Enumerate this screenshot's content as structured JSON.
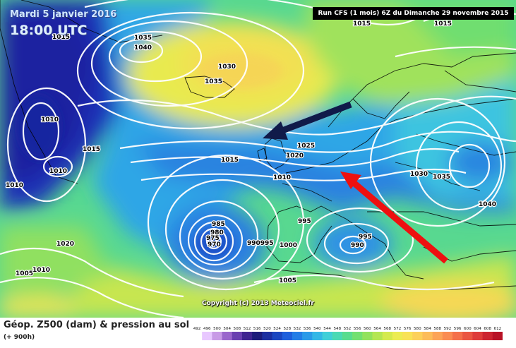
{
  "header": {
    "date": "Mardi 5 janvier 2016",
    "time": "18:00 UTC",
    "run": "Run CFS (1 mois) 6Z du Dimanche 29 novembre 2015"
  },
  "copyright": "Copyright (c) 2013 Meteociel.fr",
  "legend": {
    "title": "Géop. Z500 (dam) & pression au sol",
    "hours": "(+ 900h)",
    "scale": [
      "492",
      "496",
      "500",
      "504",
      "508",
      "512",
      "516",
      "520",
      "524",
      "528",
      "532",
      "536",
      "540",
      "544",
      "548",
      "552",
      "556",
      "560",
      "564",
      "568",
      "572",
      "576",
      "580",
      "584",
      "588",
      "592",
      "596",
      "600",
      "604",
      "608",
      "612"
    ],
    "colors": [
      "#ffffff",
      "#e8c8ff",
      "#c89ae6",
      "#9a66cc",
      "#6a40b0",
      "#3f2590",
      "#1c1c7a",
      "#1c2fa0",
      "#1b46c0",
      "#1e5fdc",
      "#237de6",
      "#2a9ae8",
      "#33b7e6",
      "#40cfd8",
      "#4ad9b4",
      "#58dc8e",
      "#72e070",
      "#92e25c",
      "#b4e652",
      "#d4ea4e",
      "#ecec52",
      "#f8e256",
      "#fcd05a",
      "#fcbc5a",
      "#fca458",
      "#fa8c52",
      "#f4704a",
      "#ea5642",
      "#de3c3a",
      "#cc2430",
      "#b81226"
    ]
  },
  "map": {
    "isobars": [
      {
        "label": "1015",
        "kind": "high"
      },
      {
        "label": "1015",
        "kind": "high"
      },
      {
        "label": "1035",
        "kind": "high"
      },
      {
        "label": "1040",
        "kind": "high"
      },
      {
        "label": "1030",
        "kind": "high"
      },
      {
        "label": "1035",
        "kind": "high"
      },
      {
        "label": "1015",
        "kind": "mid"
      },
      {
        "label": "1010",
        "kind": "low"
      },
      {
        "label": "1010",
        "kind": "low"
      },
      {
        "label": "1015",
        "kind": "mid"
      },
      {
        "label": "1025",
        "kind": "mid"
      },
      {
        "label": "1020",
        "kind": "mid"
      },
      {
        "label": "1015",
        "kind": "mid"
      },
      {
        "label": "1010",
        "kind": "mid"
      },
      {
        "label": "1030",
        "kind": "high"
      },
      {
        "label": "1035",
        "kind": "high"
      },
      {
        "label": "1040",
        "kind": "high"
      },
      {
        "label": "1020",
        "kind": "mid"
      },
      {
        "label": "985",
        "kind": "low"
      },
      {
        "label": "980",
        "kind": "low"
      },
      {
        "label": "975",
        "kind": "low"
      },
      {
        "label": "970",
        "kind": "low"
      },
      {
        "label": "990995",
        "kind": "low"
      },
      {
        "label": "1000",
        "kind": "low"
      },
      {
        "label": "995",
        "kind": "low"
      },
      {
        "label": "995",
        "kind": "low"
      },
      {
        "label": "990",
        "kind": "low"
      },
      {
        "label": "1005",
        "kind": "mid"
      },
      {
        "label": "1010",
        "kind": "mid"
      },
      {
        "label": "1005",
        "kind": "mid"
      },
      {
        "label": "1010",
        "kind": "mid"
      }
    ],
    "arrows": [
      {
        "name": "dark-blue-arrow",
        "color": "#101a4a"
      },
      {
        "name": "red-arrow",
        "color": "#ee1010"
      }
    ]
  }
}
